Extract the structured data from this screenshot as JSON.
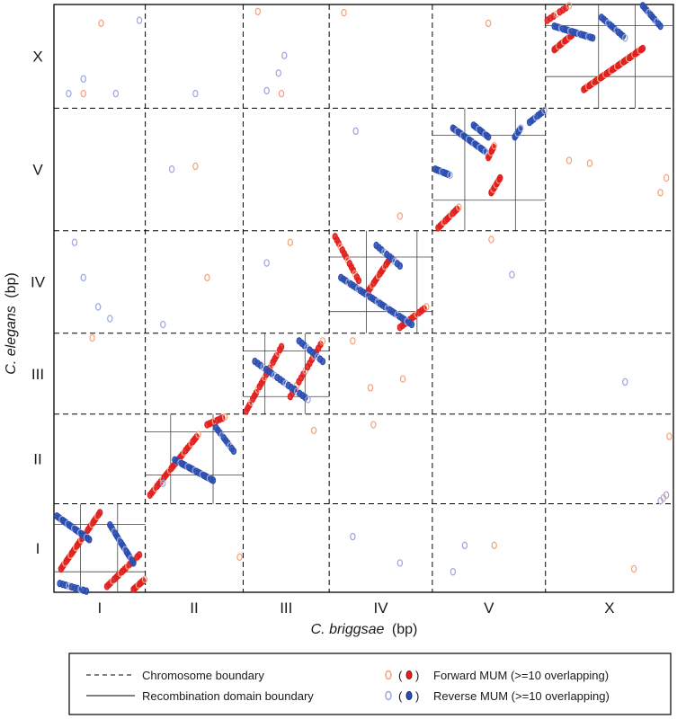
{
  "chart_data": {
    "type": "scatter",
    "title": "",
    "xlabel": {
      "species": "C. briggsae",
      "unit": "(bp)"
    },
    "ylabel": {
      "species": "C. elegans",
      "unit": "(bp)"
    },
    "x_chromosomes": [
      "I",
      "II",
      "III",
      "IV",
      "V",
      "X"
    ],
    "y_chromosomes": [
      "I",
      "II",
      "III",
      "IV",
      "V",
      "X"
    ],
    "x_chromosome_sizes_mb": [
      15.5,
      16.6,
      14.6,
      17.5,
      19.2,
      21.7
    ],
    "y_chromosome_sizes_mb": [
      15.1,
      15.3,
      13.8,
      17.5,
      20.9,
      17.7
    ],
    "recombination_domains": [
      {
        "x_chr": "I",
        "y_chr": "I",
        "x_boundaries_mb": [
          4.5,
          10.8
        ],
        "y_boundaries_mb": [
          3.5,
          11.6
        ]
      },
      {
        "x_chr": "II",
        "y_chr": "II",
        "x_boundaries_mb": [
          4.3,
          11.5
        ],
        "y_boundaries_mb": [
          4.9,
          12.3
        ]
      },
      {
        "x_chr": "III",
        "y_chr": "III",
        "x_boundaries_mb": [
          3.7,
          10.5
        ],
        "y_boundaries_mb": [
          3.0,
          10.8
        ]
      },
      {
        "x_chr": "IV",
        "y_chr": "IV",
        "x_boundaries_mb": [
          6.3,
          14.9
        ],
        "y_boundaries_mb": [
          3.7,
          13.0
        ]
      },
      {
        "x_chr": "V",
        "y_chr": "V",
        "x_boundaries_mb": [
          5.5,
          14.1
        ],
        "y_boundaries_mb": [
          5.2,
          16.3
        ]
      },
      {
        "x_chr": "X",
        "y_chr": "X",
        "x_boundaries_mb": [
          9.0,
          15.2
        ],
        "y_boundaries_mb": [
          5.4,
          14.1
        ]
      }
    ],
    "series": [
      {
        "name": "Forward MUM (>=10 overlapping)",
        "color": "#e02020",
        "light_color": "#f4a07a",
        "runs": [
          {
            "x_chr": "I",
            "y_chr": "I",
            "from": [
              1.2,
              4.0
            ],
            "to": [
              7.8,
              13.6
            ],
            "n": 30
          },
          {
            "x_chr": "I",
            "y_chr": "I",
            "from": [
              9.0,
              1.0
            ],
            "to": [
              14.5,
              6.4
            ],
            "n": 18
          },
          {
            "x_chr": "I",
            "y_chr": "I",
            "from": [
              13.5,
              0.5
            ],
            "to": [
              15.4,
              2.2
            ],
            "n": 8
          },
          {
            "x_chr": "II",
            "y_chr": "II",
            "from": [
              0.8,
              1.5
            ],
            "to": [
              9.0,
              11.8
            ],
            "n": 28
          },
          {
            "x_chr": "II",
            "y_chr": "II",
            "from": [
              10.5,
              13.5
            ],
            "to": [
              13.5,
              14.8
            ],
            "n": 8
          },
          {
            "x_chr": "III",
            "y_chr": "III",
            "from": [
              0.5,
              0.5
            ],
            "to": [
              6.5,
              11.5
            ],
            "n": 22
          },
          {
            "x_chr": "III",
            "y_chr": "III",
            "from": [
              8.0,
              3.0
            ],
            "to": [
              13.5,
              12.5
            ],
            "n": 16
          },
          {
            "x_chr": "IV",
            "y_chr": "IV",
            "from": [
              1.0,
              16.5
            ],
            "to": [
              5.0,
              9.0
            ],
            "n": 14
          },
          {
            "x_chr": "IV",
            "y_chr": "IV",
            "from": [
              6.5,
              7.0
            ],
            "to": [
              10.5,
              13.0
            ],
            "n": 16
          },
          {
            "x_chr": "IV",
            "y_chr": "IV",
            "from": [
              12.0,
              1.0
            ],
            "to": [
              16.5,
              4.5
            ],
            "n": 12
          },
          {
            "x_chr": "V",
            "y_chr": "V",
            "from": [
              1.0,
              0.5
            ],
            "to": [
              4.5,
              4.0
            ],
            "n": 12
          },
          {
            "x_chr": "V",
            "y_chr": "V",
            "from": [
              10.0,
              6.5
            ],
            "to": [
              11.5,
              9.0
            ],
            "n": 14
          },
          {
            "x_chr": "V",
            "y_chr": "V",
            "from": [
              9.5,
              12.5
            ],
            "to": [
              10.5,
              14.5
            ],
            "n": 8
          },
          {
            "x_chr": "X",
            "y_chr": "X",
            "from": [
              6.5,
              3.2
            ],
            "to": [
              16.5,
              10.2
            ],
            "n": 42
          },
          {
            "x_chr": "X",
            "y_chr": "X",
            "from": [
              1.5,
              10.0
            ],
            "to": [
              4.5,
              12.5
            ],
            "n": 14
          },
          {
            "x_chr": "X",
            "y_chr": "X",
            "from": [
              0.3,
              15.0
            ],
            "to": [
              4.0,
              17.5
            ],
            "n": 8
          }
        ],
        "scatter": [
          {
            "x_chr": "I",
            "y_chr": "X",
            "x_mb": 8.0,
            "y_mb": 14.5
          },
          {
            "x_chr": "I",
            "y_chr": "X",
            "x_mb": 5.0,
            "y_mb": 2.5
          },
          {
            "x_chr": "III",
            "y_chr": "X",
            "x_mb": 2.5,
            "y_mb": 16.5
          },
          {
            "x_chr": "III",
            "y_chr": "X",
            "x_mb": 6.5,
            "y_mb": 2.5
          },
          {
            "x_chr": "IV",
            "y_chr": "X",
            "x_mb": 2.5,
            "y_mb": 16.3
          },
          {
            "x_chr": "V",
            "y_chr": "X",
            "x_mb": 9.5,
            "y_mb": 14.5
          },
          {
            "x_chr": "IV",
            "y_chr": "V",
            "x_mb": 12.0,
            "y_mb": 2.5
          },
          {
            "x_chr": "V",
            "y_chr": "IV",
            "x_mb": 10.0,
            "y_mb": 16.0
          },
          {
            "x_chr": "II",
            "y_chr": "V",
            "x_mb": 8.5,
            "y_mb": 11.0
          },
          {
            "x_chr": "II",
            "y_chr": "IV",
            "x_mb": 10.5,
            "y_mb": 9.5
          },
          {
            "x_chr": "X",
            "y_chr": "V",
            "x_mb": 4.0,
            "y_mb": 12.0
          },
          {
            "x_chr": "X",
            "y_chr": "V",
            "x_mb": 7.5,
            "y_mb": 11.5
          },
          {
            "x_chr": "X",
            "y_chr": "V",
            "x_mb": 19.5,
            "y_mb": 6.5
          },
          {
            "x_chr": "X",
            "y_chr": "V",
            "x_mb": 20.5,
            "y_mb": 9.0
          },
          {
            "x_chr": "III",
            "y_chr": "IV",
            "x_mb": 8.0,
            "y_mb": 15.5
          },
          {
            "x_chr": "IV",
            "y_chr": "III",
            "x_mb": 4.0,
            "y_mb": 12.5
          },
          {
            "x_chr": "IV",
            "y_chr": "III",
            "x_mb": 12.5,
            "y_mb": 6.0
          },
          {
            "x_chr": "IV",
            "y_chr": "III",
            "x_mb": 7.0,
            "y_mb": 4.5
          },
          {
            "x_chr": "IV",
            "y_chr": "II",
            "x_mb": 7.5,
            "y_mb": 13.5
          },
          {
            "x_chr": "I",
            "y_chr": "III",
            "x_mb": 6.5,
            "y_mb": 13.0
          },
          {
            "x_chr": "X",
            "y_chr": "II",
            "x_mb": 21.0,
            "y_mb": 11.5
          },
          {
            "x_chr": "X",
            "y_chr": "II",
            "x_mb": 20.0,
            "y_mb": 1.0
          },
          {
            "x_chr": "X",
            "y_chr": "I",
            "x_mb": 15.0,
            "y_mb": 4.0
          },
          {
            "x_chr": "V",
            "y_chr": "I",
            "x_mb": 10.5,
            "y_mb": 8.0
          },
          {
            "x_chr": "II",
            "y_chr": "I",
            "x_mb": 16.0,
            "y_mb": 6.0
          },
          {
            "x_chr": "III",
            "y_chr": "II",
            "x_mb": 12.0,
            "y_mb": 12.5
          }
        ]
      },
      {
        "name": "Reverse MUM (>=10 overlapping)",
        "color": "#2b4fb0",
        "light_color": "#9aa4e0",
        "runs": [
          {
            "x_chr": "I",
            "y_chr": "I",
            "from": [
              0.5,
              13.0
            ],
            "to": [
              6.0,
              9.0
            ],
            "n": 22
          },
          {
            "x_chr": "I",
            "y_chr": "I",
            "from": [
              9.5,
              11.5
            ],
            "to": [
              13.5,
              5.0
            ],
            "n": 18
          },
          {
            "x_chr": "I",
            "y_chr": "I",
            "from": [
              1.0,
              1.5
            ],
            "to": [
              5.5,
              0.2
            ],
            "n": 10
          },
          {
            "x_chr": "II",
            "y_chr": "II",
            "from": [
              5.0,
              7.5
            ],
            "to": [
              11.5,
              4.0
            ],
            "n": 22
          },
          {
            "x_chr": "II",
            "y_chr": "II",
            "from": [
              12.0,
              13.0
            ],
            "to": [
              15.0,
              9.0
            ],
            "n": 10
          },
          {
            "x_chr": "III",
            "y_chr": "III",
            "from": [
              2.0,
              9.0
            ],
            "to": [
              11.0,
              2.5
            ],
            "n": 20
          },
          {
            "x_chr": "III",
            "y_chr": "III",
            "from": [
              9.5,
              12.5
            ],
            "to": [
              13.5,
              9.0
            ],
            "n": 10
          },
          {
            "x_chr": "IV",
            "y_chr": "IV",
            "from": [
              2.0,
              9.5
            ],
            "to": [
              14.0,
              1.5
            ],
            "n": 30
          },
          {
            "x_chr": "IV",
            "y_chr": "IV",
            "from": [
              8.0,
              15.0
            ],
            "to": [
              12.0,
              11.5
            ],
            "n": 10
          },
          {
            "x_chr": "V",
            "y_chr": "V",
            "from": [
              3.5,
              17.5
            ],
            "to": [
              9.0,
              13.5
            ],
            "n": 24
          },
          {
            "x_chr": "V",
            "y_chr": "V",
            "from": [
              7.0,
              18.0
            ],
            "to": [
              9.5,
              16.0
            ],
            "n": 10
          },
          {
            "x_chr": "V",
            "y_chr": "V",
            "from": [
              14.0,
              16.0
            ],
            "to": [
              15.0,
              17.5
            ],
            "n": 8
          },
          {
            "x_chr": "V",
            "y_chr": "V",
            "from": [
              16.5,
              18.5
            ],
            "to": [
              19.0,
              20.5
            ],
            "n": 8
          },
          {
            "x_chr": "V",
            "y_chr": "V",
            "from": [
              0.5,
              10.5
            ],
            "to": [
              3.0,
              9.5
            ],
            "n": 8
          },
          {
            "x_chr": "X",
            "y_chr": "X",
            "from": [
              1.5,
              14.0
            ],
            "to": [
              8.0,
              12.0
            ],
            "n": 18
          },
          {
            "x_chr": "X",
            "y_chr": "X",
            "from": [
              9.5,
              15.5
            ],
            "to": [
              13.5,
              12.0
            ],
            "n": 12
          },
          {
            "x_chr": "X",
            "y_chr": "X",
            "from": [
              16.5,
              17.5
            ],
            "to": [
              19.5,
              14.0
            ],
            "n": 10
          }
        ],
        "scatter": [
          {
            "x_chr": "I",
            "y_chr": "X",
            "x_mb": 2.5,
            "y_mb": 2.5
          },
          {
            "x_chr": "I",
            "y_chr": "X",
            "x_mb": 5.0,
            "y_mb": 5.0
          },
          {
            "x_chr": "I",
            "y_chr": "X",
            "x_mb": 14.5,
            "y_mb": 15.0
          },
          {
            "x_chr": "I",
            "y_chr": "X",
            "x_mb": 10.5,
            "y_mb": 2.5
          },
          {
            "x_chr": "II",
            "y_chr": "X",
            "x_mb": 8.5,
            "y_mb": 2.5
          },
          {
            "x_chr": "III",
            "y_chr": "X",
            "x_mb": 4.0,
            "y_mb": 3.0
          },
          {
            "x_chr": "III",
            "y_chr": "X",
            "x_mb": 7.0,
            "y_mb": 9.0
          },
          {
            "x_chr": "III",
            "y_chr": "X",
            "x_mb": 6.0,
            "y_mb": 6.0
          },
          {
            "x_chr": "IV",
            "y_chr": "V",
            "x_mb": 4.5,
            "y_mb": 17.0
          },
          {
            "x_chr": "II",
            "y_chr": "V",
            "x_mb": 4.5,
            "y_mb": 10.5
          },
          {
            "x_chr": "I",
            "y_chr": "IV",
            "x_mb": 3.5,
            "y_mb": 15.5
          },
          {
            "x_chr": "I",
            "y_chr": "IV",
            "x_mb": 5.0,
            "y_mb": 9.5
          },
          {
            "x_chr": "I",
            "y_chr": "IV",
            "x_mb": 7.5,
            "y_mb": 4.5
          },
          {
            "x_chr": "I",
            "y_chr": "IV",
            "x_mb": 9.5,
            "y_mb": 2.5
          },
          {
            "x_chr": "II",
            "y_chr": "IV",
            "x_mb": 3.0,
            "y_mb": 1.5
          },
          {
            "x_chr": "III",
            "y_chr": "IV",
            "x_mb": 4.0,
            "y_mb": 12.0
          },
          {
            "x_chr": "V",
            "y_chr": "IV",
            "x_mb": 13.5,
            "y_mb": 10.0
          },
          {
            "x_chr": "X",
            "y_chr": "III",
            "x_mb": 13.5,
            "y_mb": 5.5
          },
          {
            "x_chr": "II",
            "y_chr": "II",
            "x_mb": 3.0,
            "y_mb": 3.5
          },
          {
            "x_chr": "IV",
            "y_chr": "I",
            "x_mb": 4.0,
            "y_mb": 9.5
          },
          {
            "x_chr": "V",
            "y_chr": "I",
            "x_mb": 3.5,
            "y_mb": 3.5
          },
          {
            "x_chr": "V",
            "y_chr": "I",
            "x_mb": 5.5,
            "y_mb": 8.0
          },
          {
            "x_chr": "IV",
            "y_chr": "I",
            "x_mb": 12.0,
            "y_mb": 5.0
          },
          {
            "x_chr": "X",
            "y_chr": "II",
            "x_mb": 19.5,
            "y_mb": 0.5
          },
          {
            "x_chr": "X",
            "y_chr": "II",
            "x_mb": 20.5,
            "y_mb": 1.5
          }
        ]
      }
    ],
    "grid": false
  },
  "legend": {
    "chromosome_boundary": "Chromosome boundary",
    "recombination_boundary": "Recombination domain boundary",
    "forward": "Forward MUM (>=10 overlapping)",
    "reverse": "Reverse MUM (>=10 overlapping)"
  }
}
